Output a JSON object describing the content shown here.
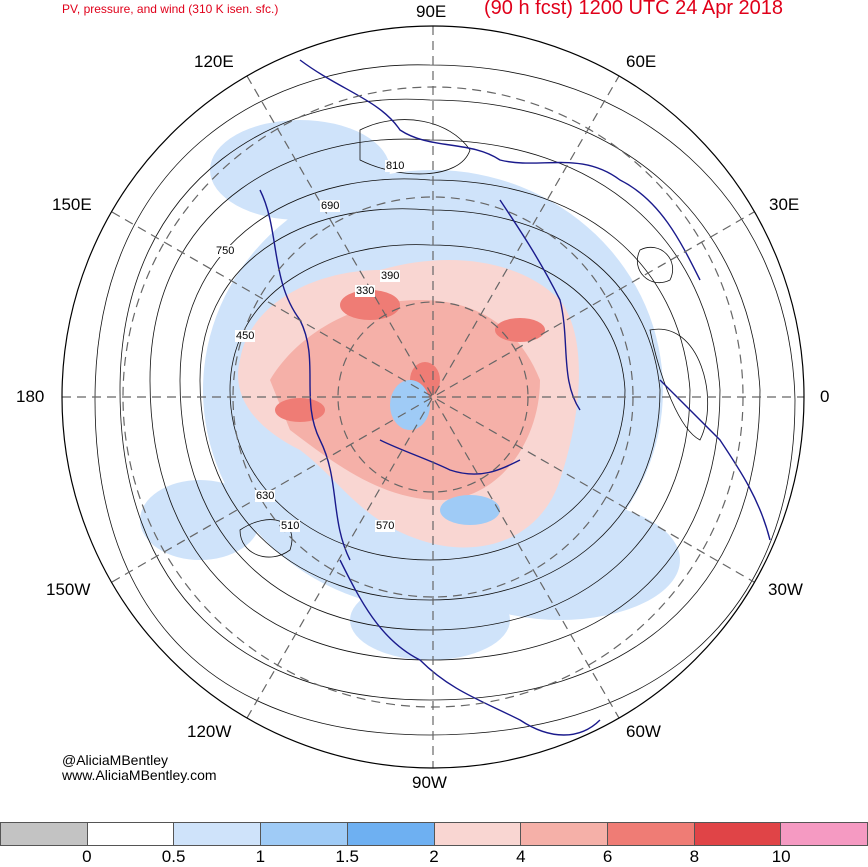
{
  "header": {
    "title_left": "PV, pressure, and wind (310 K isen. sfc.)",
    "title_right": "(90 h fcst) 1200 UTC 24 Apr 2018"
  },
  "map_labels": {
    "lon_90e": "90E",
    "lon_120e": "120E",
    "lon_60e": "60E",
    "lon_150e": "150E",
    "lon_30e": "30E",
    "lon_180": "180",
    "lon_0": "0",
    "lon_150w": "150W",
    "lon_30w": "30W",
    "lon_120w": "120W",
    "lon_60w": "60W",
    "lon_90w": "90W"
  },
  "contour_labels": [
    "330",
    "390",
    "450",
    "510",
    "570",
    "630",
    "690",
    "750",
    "810"
  ],
  "credits": {
    "twitter": "@AliciaMBentley",
    "website": "www.AliciaMBentley.com"
  },
  "colorbar": {
    "colors": [
      "#c3c3c3",
      "#ffffff",
      "#cfe3fa",
      "#9fcbf6",
      "#6eb0f2",
      "#f9d6d2",
      "#f5b0a8",
      "#ef7c75",
      "#e04447",
      "#f59ac2"
    ],
    "labels": [
      "0",
      "0.5",
      "1",
      "1.5",
      "2",
      "4",
      "6",
      "8",
      "10"
    ]
  },
  "colors": {
    "title": "#e0001a",
    "coast": "#1a1a8c",
    "contour": "#111111"
  }
}
